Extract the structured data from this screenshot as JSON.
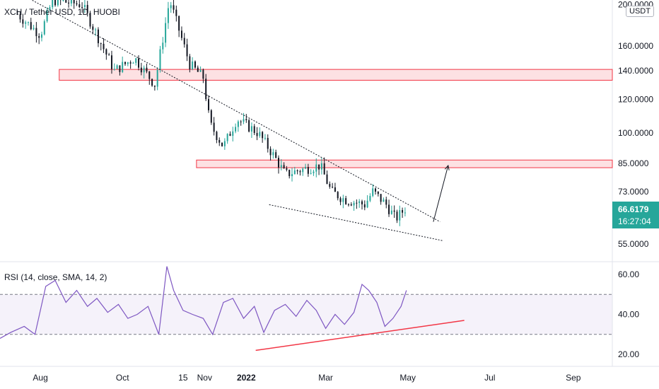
{
  "header": {
    "title": "XCH / Tether USD, 1D, HUOBI",
    "currency": "USDT"
  },
  "last_price": {
    "value": "66.6179",
    "countdown": "16:27:04"
  },
  "rsi": {
    "title": "RSI (14, close, SMA, 14, 2)"
  },
  "colors": {
    "up": "#26a69a",
    "down": "#131722",
    "zone_fill": "rgba(242,54,69,0.15)",
    "zone_border": "#f23645",
    "rsi_line": "#7e57c2",
    "rsi_band": "rgba(126,87,194,0.08)",
    "trendline_red": "#f23645"
  },
  "chart_data": [
    {
      "type": "candlestick",
      "title": "XCH / Tether USD, 1D, HUOBI",
      "price_axis_scale": "log",
      "y_tick_labels": [
        "200.0000",
        "160.0000",
        "140.0000",
        "120.0000",
        "100.0000",
        "85.0000",
        "73.0000",
        "55.0000"
      ],
      "y_ticks": [
        200,
        160,
        140,
        120,
        100,
        85,
        73,
        55
      ],
      "x_tick_labels": [
        "Aug",
        "Oct",
        "15",
        "Nov",
        "2022",
        "Mar",
        "May",
        "Jul",
        "Sep"
      ],
      "x_ticks": [
        "2021-08-01",
        "2021-10-01",
        "2021-11-15",
        "2021-12-01",
        "2022-01-01",
        "2022-03-01",
        "2022-05-01",
        "2022-07-01",
        "2022-09-01"
      ],
      "x_range": [
        "2021-07-02",
        "2022-09-30"
      ],
      "ylim": [
        50,
        205
      ],
      "last_price": 66.6179,
      "key_points": [
        {
          "date": "2021-07-15",
          "price": 190
        },
        {
          "date": "2021-08-01",
          "price": 170
        },
        {
          "date": "2021-08-10",
          "price": 205
        },
        {
          "date": "2021-09-01",
          "price": 200
        },
        {
          "date": "2021-09-25",
          "price": 140
        },
        {
          "date": "2021-10-10",
          "price": 150
        },
        {
          "date": "2021-10-25",
          "price": 130
        },
        {
          "date": "2021-11-05",
          "price": 205
        },
        {
          "date": "2021-11-20",
          "price": 145
        },
        {
          "date": "2021-11-30",
          "price": 135
        },
        {
          "date": "2021-12-05",
          "price": 105
        },
        {
          "date": "2021-12-15",
          "price": 93
        },
        {
          "date": "2021-12-25",
          "price": 108
        },
        {
          "date": "2022-01-10",
          "price": 100
        },
        {
          "date": "2022-01-22",
          "price": 88
        },
        {
          "date": "2022-01-30",
          "price": 80
        },
        {
          "date": "2022-02-10",
          "price": 82
        },
        {
          "date": "2022-02-25",
          "price": 84
        },
        {
          "date": "2022-03-05",
          "price": 73
        },
        {
          "date": "2022-03-15",
          "price": 70
        },
        {
          "date": "2022-03-30",
          "price": 68
        },
        {
          "date": "2022-04-05",
          "price": 73
        },
        {
          "date": "2022-04-15",
          "price": 68
        },
        {
          "date": "2022-04-22",
          "price": 63
        },
        {
          "date": "2022-04-30",
          "price": 67
        }
      ],
      "zones": [
        {
          "from_date": "2021-08-15",
          "to_date": "2022-09-30",
          "low": 133,
          "high": 141
        },
        {
          "from_date": "2021-11-25",
          "to_date": "2022-09-30",
          "low": 83,
          "high": 86.5
        }
      ],
      "trendlines": [
        {
          "style": "dotted",
          "from": {
            "date": "2021-07-02",
            "price": 225
          },
          "to": {
            "date": "2022-05-25",
            "price": 62
          }
        },
        {
          "style": "dotted",
          "from": {
            "date": "2022-01-18",
            "price": 68
          },
          "to": {
            "date": "2022-05-27",
            "price": 56
          }
        }
      ],
      "projection_arrow": {
        "from": {
          "date": "2022-05-20",
          "price": 62
        },
        "to": {
          "date": "2022-05-31",
          "price": 84
        }
      }
    },
    {
      "type": "line",
      "title": "RSI (14, close, SMA, 14, 2)",
      "y_tick_labels": [
        "60.00",
        "40.00",
        "20.00"
      ],
      "y_ticks": [
        60,
        40,
        20
      ],
      "levels": [
        30,
        50
      ],
      "ylim": [
        14,
        66
      ],
      "series": [
        {
          "x": [
            "2021-07-02",
            "2021-07-10",
            "2021-07-20",
            "2021-07-28",
            "2021-08-05",
            "2021-08-12",
            "2021-08-20",
            "2021-08-28",
            "2021-09-05",
            "2021-09-12",
            "2021-09-20",
            "2021-09-28",
            "2021-10-05",
            "2021-10-12",
            "2021-10-20",
            "2021-10-28",
            "2021-11-03",
            "2021-11-08",
            "2021-11-15",
            "2021-11-22",
            "2021-11-30",
            "2021-12-07",
            "2021-12-15",
            "2021-12-22",
            "2021-12-30",
            "2022-01-07",
            "2022-01-14",
            "2022-01-22",
            "2022-01-30",
            "2022-02-07",
            "2022-02-15",
            "2022-02-22",
            "2022-03-01",
            "2022-03-08",
            "2022-03-15",
            "2022-03-22",
            "2022-03-28",
            "2022-04-02",
            "2022-04-08",
            "2022-04-14",
            "2022-04-20",
            "2022-04-26",
            "2022-04-30"
          ],
          "values": [
            28,
            31,
            34,
            30,
            54,
            57,
            46,
            52,
            44,
            48,
            41,
            45,
            38,
            40,
            44,
            30,
            64,
            52,
            42,
            40,
            38,
            30,
            46,
            48,
            38,
            44,
            31,
            42,
            45,
            39,
            47,
            42,
            33,
            40,
            35,
            41,
            55,
            52,
            46,
            34,
            38,
            44,
            52
          ]
        }
      ],
      "trendlines": [
        {
          "style": "solid",
          "from": {
            "date": "2022-01-08",
            "value": 22
          },
          "to": {
            "date": "2022-06-12",
            "value": 37
          }
        }
      ]
    }
  ]
}
